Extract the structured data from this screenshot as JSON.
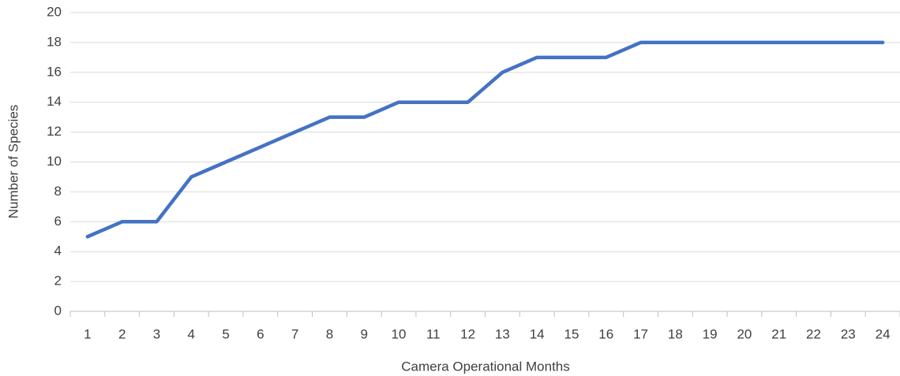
{
  "chart_data": {
    "type": "line",
    "x_label": "Camera Operational Months",
    "y_label": "Number of Species",
    "categories": [
      "1",
      "2",
      "3",
      "4",
      "5",
      "6",
      "7",
      "8",
      "9",
      "10",
      "11",
      "12",
      "13",
      "14",
      "15",
      "16",
      "17",
      "18",
      "19",
      "20",
      "21",
      "22",
      "23",
      "24"
    ],
    "series": [
      {
        "name": "Number of Species",
        "color": "#4472c4",
        "values": [
          5,
          6,
          6,
          9,
          10,
          11,
          12,
          13,
          13,
          14,
          14,
          14,
          16,
          17,
          17,
          17,
          18,
          18,
          18,
          18,
          18,
          18,
          18,
          18
        ]
      }
    ],
    "ylim": [
      0,
      20
    ],
    "yticks": [
      0,
      2,
      4,
      6,
      8,
      10,
      12,
      14,
      16,
      18,
      20
    ],
    "grid": true
  }
}
